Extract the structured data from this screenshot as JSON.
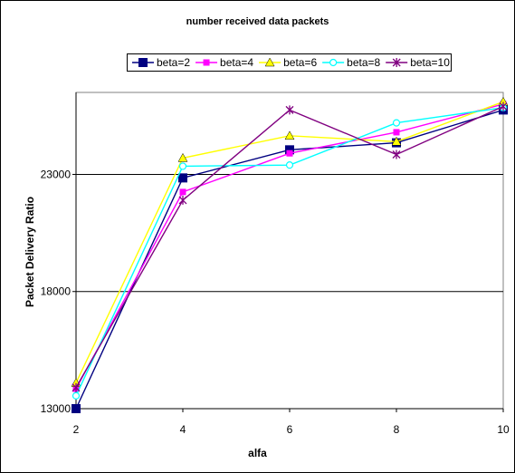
{
  "chart_data": {
    "type": "line",
    "title": "number received data packets",
    "xlabel": "alfa",
    "ylabel": "Packet Delivery Ratio",
    "x": [
      2,
      4,
      6,
      8,
      10
    ],
    "xlim": [
      2,
      10
    ],
    "ylim": [
      13000,
      26500
    ],
    "yticks": [
      13000,
      18000,
      23000
    ],
    "xticks": [
      2,
      4,
      6,
      8,
      10
    ],
    "grid": "horizontal",
    "legend_position": "top",
    "series": [
      {
        "name": "beta=2",
        "color": "#000080",
        "marker": "square",
        "values": [
          13000,
          22850,
          24050,
          24350,
          25750
        ]
      },
      {
        "name": "beta=4",
        "color": "#ff00ff",
        "marker": "square",
        "values": [
          13850,
          22250,
          23900,
          24800,
          26000
        ]
      },
      {
        "name": "beta=6",
        "color": "#ffff00",
        "marker": "triangle",
        "values": [
          14100,
          23700,
          24650,
          24400,
          26100
        ]
      },
      {
        "name": "beta=8",
        "color": "#00ffff",
        "marker": "circle",
        "values": [
          13550,
          23350,
          23400,
          25200,
          25850
        ]
      },
      {
        "name": "beta=10",
        "color": "#800080",
        "marker": "star",
        "values": [
          13900,
          21900,
          25750,
          23850,
          25900
        ]
      }
    ]
  }
}
